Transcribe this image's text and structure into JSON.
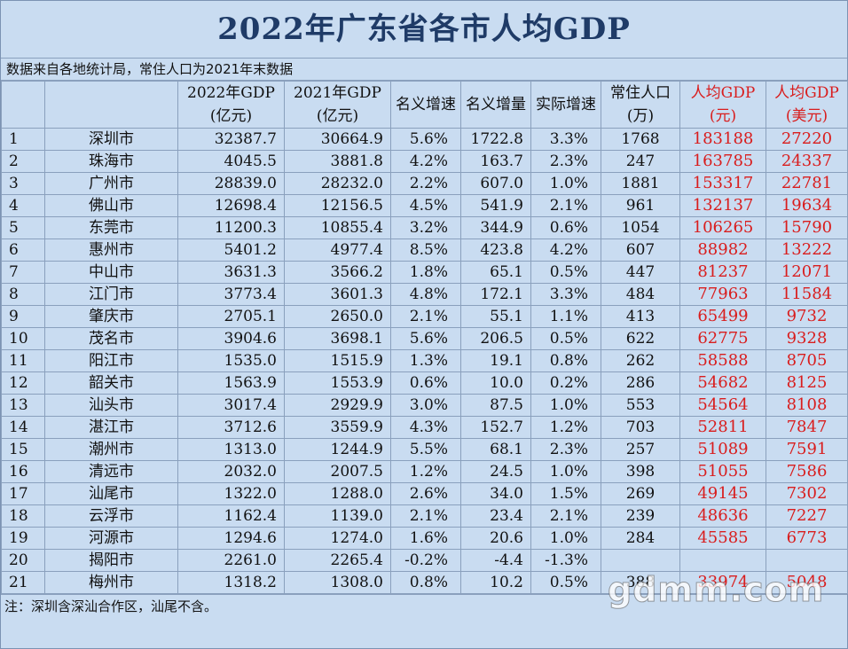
{
  "title": "2022年广东省各市人均GDP",
  "source_note": "数据来自各地统计局，常住人口为2021年末数据",
  "headers": {
    "gdp2022": [
      "2022年GDP",
      "(亿元)"
    ],
    "gdp2021": [
      "2021年GDP",
      "(亿元)"
    ],
    "nominal_growth": "名义增速",
    "nominal_increase": "名义增量",
    "real_growth": "实际增速",
    "population": [
      "常住人口",
      "(万)"
    ],
    "per_capita_cny": [
      "人均GDP",
      "(元)"
    ],
    "per_capita_usd": [
      "人均GDP",
      "(美元)"
    ]
  },
  "rows": [
    {
      "rank": "1",
      "city": "深圳市",
      "gdp2022": "32387.7",
      "gdp2021": "30664.9",
      "nominal_growth": "5.6%",
      "nominal_increase": "1722.8",
      "real_growth": "3.3%",
      "population": "1768",
      "per_capita_cny": "183188",
      "per_capita_usd": "27220"
    },
    {
      "rank": "2",
      "city": "珠海市",
      "gdp2022": "4045.5",
      "gdp2021": "3881.8",
      "nominal_growth": "4.2%",
      "nominal_increase": "163.7",
      "real_growth": "2.3%",
      "population": "247",
      "per_capita_cny": "163785",
      "per_capita_usd": "24337"
    },
    {
      "rank": "3",
      "city": "广州市",
      "gdp2022": "28839.0",
      "gdp2021": "28232.0",
      "nominal_growth": "2.2%",
      "nominal_increase": "607.0",
      "real_growth": "1.0%",
      "population": "1881",
      "per_capita_cny": "153317",
      "per_capita_usd": "22781"
    },
    {
      "rank": "4",
      "city": "佛山市",
      "gdp2022": "12698.4",
      "gdp2021": "12156.5",
      "nominal_growth": "4.5%",
      "nominal_increase": "541.9",
      "real_growth": "2.1%",
      "population": "961",
      "per_capita_cny": "132137",
      "per_capita_usd": "19634"
    },
    {
      "rank": "5",
      "city": "东莞市",
      "gdp2022": "11200.3",
      "gdp2021": "10855.4",
      "nominal_growth": "3.2%",
      "nominal_increase": "344.9",
      "real_growth": "0.6%",
      "population": "1054",
      "per_capita_cny": "106265",
      "per_capita_usd": "15790"
    },
    {
      "rank": "6",
      "city": "惠州市",
      "gdp2022": "5401.2",
      "gdp2021": "4977.4",
      "nominal_growth": "8.5%",
      "nominal_increase": "423.8",
      "real_growth": "4.2%",
      "population": "607",
      "per_capita_cny": "88982",
      "per_capita_usd": "13222"
    },
    {
      "rank": "7",
      "city": "中山市",
      "gdp2022": "3631.3",
      "gdp2021": "3566.2",
      "nominal_growth": "1.8%",
      "nominal_increase": "65.1",
      "real_growth": "0.5%",
      "population": "447",
      "per_capita_cny": "81237",
      "per_capita_usd": "12071"
    },
    {
      "rank": "8",
      "city": "江门市",
      "gdp2022": "3773.4",
      "gdp2021": "3601.3",
      "nominal_growth": "4.8%",
      "nominal_increase": "172.1",
      "real_growth": "3.3%",
      "population": "484",
      "per_capita_cny": "77963",
      "per_capita_usd": "11584"
    },
    {
      "rank": "9",
      "city": "肇庆市",
      "gdp2022": "2705.1",
      "gdp2021": "2650.0",
      "nominal_growth": "2.1%",
      "nominal_increase": "55.1",
      "real_growth": "1.1%",
      "population": "413",
      "per_capita_cny": "65499",
      "per_capita_usd": "9732"
    },
    {
      "rank": "10",
      "city": "茂名市",
      "gdp2022": "3904.6",
      "gdp2021": "3698.1",
      "nominal_growth": "5.6%",
      "nominal_increase": "206.5",
      "real_growth": "0.5%",
      "population": "622",
      "per_capita_cny": "62775",
      "per_capita_usd": "9328"
    },
    {
      "rank": "11",
      "city": "阳江市",
      "gdp2022": "1535.0",
      "gdp2021": "1515.9",
      "nominal_growth": "1.3%",
      "nominal_increase": "19.1",
      "real_growth": "0.8%",
      "population": "262",
      "per_capita_cny": "58588",
      "per_capita_usd": "8705"
    },
    {
      "rank": "12",
      "city": "韶关市",
      "gdp2022": "1563.9",
      "gdp2021": "1553.9",
      "nominal_growth": "0.6%",
      "nominal_increase": "10.0",
      "real_growth": "0.2%",
      "population": "286",
      "per_capita_cny": "54682",
      "per_capita_usd": "8125"
    },
    {
      "rank": "13",
      "city": "汕头市",
      "gdp2022": "3017.4",
      "gdp2021": "2929.9",
      "nominal_growth": "3.0%",
      "nominal_increase": "87.5",
      "real_growth": "1.0%",
      "population": "553",
      "per_capita_cny": "54564",
      "per_capita_usd": "8108"
    },
    {
      "rank": "14",
      "city": "湛江市",
      "gdp2022": "3712.6",
      "gdp2021": "3559.9",
      "nominal_growth": "4.3%",
      "nominal_increase": "152.7",
      "real_growth": "1.2%",
      "population": "703",
      "per_capita_cny": "52811",
      "per_capita_usd": "7847"
    },
    {
      "rank": "15",
      "city": "潮州市",
      "gdp2022": "1313.0",
      "gdp2021": "1244.9",
      "nominal_growth": "5.5%",
      "nominal_increase": "68.1",
      "real_growth": "2.3%",
      "population": "257",
      "per_capita_cny": "51089",
      "per_capita_usd": "7591"
    },
    {
      "rank": "16",
      "city": "清远市",
      "gdp2022": "2032.0",
      "gdp2021": "2007.5",
      "nominal_growth": "1.2%",
      "nominal_increase": "24.5",
      "real_growth": "1.0%",
      "population": "398",
      "per_capita_cny": "51055",
      "per_capita_usd": "7586"
    },
    {
      "rank": "17",
      "city": "汕尾市",
      "gdp2022": "1322.0",
      "gdp2021": "1288.0",
      "nominal_growth": "2.6%",
      "nominal_increase": "34.0",
      "real_growth": "1.5%",
      "population": "269",
      "per_capita_cny": "49145",
      "per_capita_usd": "7302"
    },
    {
      "rank": "18",
      "city": "云浮市",
      "gdp2022": "1162.4",
      "gdp2021": "1139.0",
      "nominal_growth": "2.1%",
      "nominal_increase": "23.4",
      "real_growth": "2.1%",
      "population": "239",
      "per_capita_cny": "48636",
      "per_capita_usd": "7227"
    },
    {
      "rank": "19",
      "city": "河源市",
      "gdp2022": "1294.6",
      "gdp2021": "1274.0",
      "nominal_growth": "1.6%",
      "nominal_increase": "20.6",
      "real_growth": "1.0%",
      "population": "284",
      "per_capita_cny": "45585",
      "per_capita_usd": "6773"
    },
    {
      "rank": "20",
      "city": "揭阳市",
      "gdp2022": "2261.0",
      "gdp2021": "2265.4",
      "nominal_growth": "-0.2%",
      "nominal_increase": "-4.4",
      "real_growth": "-1.3%",
      "population": "",
      "per_capita_cny": "",
      "per_capita_usd": ""
    },
    {
      "rank": "21",
      "city": "梅州市",
      "gdp2022": "1318.2",
      "gdp2021": "1308.0",
      "nominal_growth": "0.8%",
      "nominal_increase": "10.2",
      "real_growth": "0.5%",
      "population": "388",
      "per_capita_cny": "33974",
      "per_capita_usd": "5048"
    }
  ],
  "footnote": "注：深圳含深汕合作区，汕尾不含。",
  "watermark": "gdmm.com",
  "colors": {
    "background": "#c9dcf1",
    "title": "#1f3b67",
    "highlight": "#d91d1d"
  }
}
